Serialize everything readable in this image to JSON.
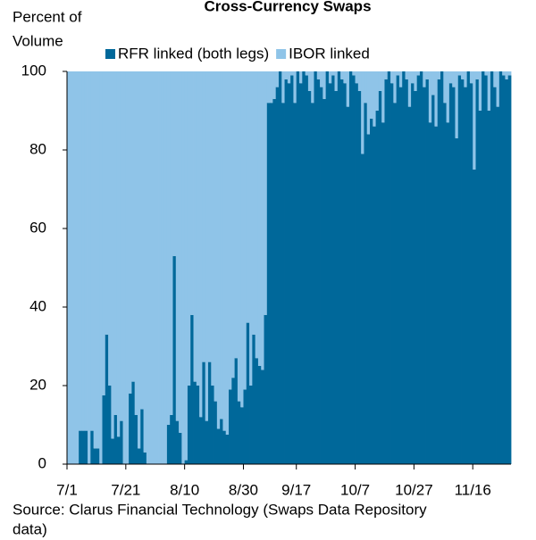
{
  "chart_data": {
    "type": "stacked_bar",
    "title": "Cross-Currency Swaps",
    "ylabel": [
      "Percent of",
      "Volume"
    ],
    "source": [
      "Source: Clarus Financial Technology (Swaps Data Repository",
      "data)"
    ],
    "categories": [
      "7/1",
      null,
      null,
      null,
      null,
      null,
      null,
      null,
      null,
      null,
      null,
      null,
      null,
      null,
      null,
      null,
      null,
      null,
      null,
      null,
      "7/21",
      null,
      null,
      null,
      null,
      null,
      null,
      null,
      null,
      null,
      null,
      null,
      null,
      null,
      null,
      null,
      null,
      null,
      null,
      null,
      "8/10",
      null,
      null,
      null,
      null,
      null,
      null,
      null,
      null,
      null,
      null,
      null,
      null,
      null,
      null,
      null,
      null,
      null,
      null,
      null,
      "8/30",
      null,
      null,
      null,
      null,
      null,
      null,
      null,
      null,
      null,
      null,
      null,
      null,
      null,
      null,
      null,
      null,
      null,
      "9/17",
      null,
      null,
      null,
      null,
      null,
      null,
      null,
      null,
      null,
      null,
      null,
      null,
      null,
      null,
      null,
      null,
      null,
      null,
      null,
      "10/7",
      null,
      null,
      null,
      null,
      null,
      null,
      null,
      null,
      null,
      null,
      null,
      null,
      null,
      null,
      null,
      null,
      null,
      null,
      null,
      "10/27",
      null,
      null,
      null,
      null,
      null,
      null,
      null,
      null,
      null,
      null,
      null,
      null,
      null,
      null,
      null,
      null,
      null,
      null,
      null,
      "11/16",
      null,
      null,
      null,
      null,
      null,
      null,
      null,
      null,
      null,
      null,
      null,
      null
    ],
    "series": [
      {
        "name": "RFR linked (both legs)",
        "color": "#00689a",
        "values": [
          0,
          0,
          0,
          0,
          8.5,
          8.5,
          8.5,
          0,
          8.5,
          4,
          4,
          0,
          17.5,
          33,
          20,
          6.5,
          12.5,
          7,
          11,
          0,
          0,
          18,
          21,
          12.5,
          4,
          14,
          3,
          0,
          0,
          0,
          0,
          0,
          0,
          0,
          10,
          12.5,
          53,
          11,
          8,
          0,
          1,
          20,
          38,
          21,
          20,
          12,
          26,
          11,
          26,
          20,
          16,
          9,
          11.5,
          8.5,
          7.5,
          19,
          22,
          27,
          16,
          14.5,
          19,
          36,
          20,
          33,
          27,
          25,
          24,
          38,
          92,
          92,
          93,
          96,
          100,
          92,
          98,
          97,
          99,
          92,
          100,
          97,
          100,
          99,
          95,
          92,
          100,
          98,
          96,
          93,
          100,
          97,
          99,
          95,
          100,
          98,
          97,
          91,
          100,
          99,
          97,
          95,
          79,
          92,
          84,
          88,
          86,
          90,
          95,
          87,
          98,
          100,
          97,
          92,
          99,
          96,
          100,
          98,
          91,
          97,
          95,
          99,
          100,
          96,
          98,
          87,
          94,
          86,
          98,
          100,
          92,
          87,
          97,
          96,
          83,
          99,
          98,
          96,
          100,
          97,
          75,
          98,
          90,
          100,
          99,
          90,
          100,
          96,
          91,
          100,
          99,
          98,
          99
        ]
      },
      {
        "name": "IBOR linked",
        "color": "#8fc4e8",
        "values": [
          100,
          100,
          100,
          100,
          91.5,
          91.5,
          91.5,
          100,
          91.5,
          96,
          96,
          100,
          82.5,
          67,
          80,
          93.5,
          87.5,
          93,
          89,
          100,
          100,
          82,
          79,
          87.5,
          96,
          86,
          97,
          100,
          100,
          100,
          100,
          100,
          100,
          100,
          90,
          87.5,
          47,
          89,
          92,
          100,
          99,
          80,
          62,
          79,
          80,
          88,
          74,
          89,
          74,
          80,
          84,
          91,
          88.5,
          91.5,
          92.5,
          81,
          78,
          73,
          84,
          85.5,
          81,
          64,
          80,
          67,
          73,
          75,
          76,
          62,
          8,
          8,
          7,
          4,
          0,
          8,
          2,
          3,
          1,
          8,
          0,
          3,
          0,
          1,
          5,
          8,
          0,
          2,
          4,
          7,
          0,
          3,
          1,
          5,
          0,
          2,
          3,
          9,
          0,
          1,
          3,
          5,
          21,
          8,
          16,
          12,
          14,
          10,
          5,
          13,
          2,
          0,
          3,
          8,
          1,
          4,
          0,
          2,
          9,
          3,
          5,
          1,
          0,
          4,
          2,
          13,
          6,
          14,
          2,
          0,
          8,
          13,
          3,
          4,
          17,
          1,
          2,
          4,
          0,
          3,
          25,
          2,
          10,
          0,
          1,
          10,
          0,
          4,
          9,
          0,
          1,
          2,
          1
        ]
      }
    ],
    "ylim": [
      0,
      100
    ],
    "yticks": [
      0,
      20,
      40,
      60,
      80,
      100
    ],
    "grid": false
  }
}
